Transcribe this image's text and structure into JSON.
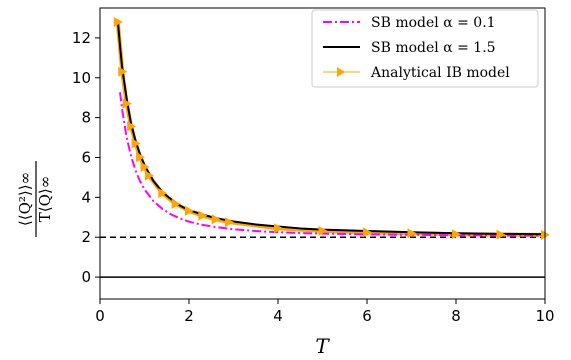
{
  "chart_data": {
    "type": "line",
    "xlabel": "T",
    "ylabel_numerator": "⟨⟨Q²⟩⟩∞",
    "ylabel_denominator": "T⟨Q⟩∞",
    "xlim": [
      0,
      10
    ],
    "ylim": [
      -1.1,
      13.5
    ],
    "x_ticks": [
      0,
      2,
      4,
      6,
      8,
      10
    ],
    "y_ticks": [
      0,
      2,
      4,
      6,
      8,
      10,
      12
    ],
    "grid": false,
    "legend_position": "top-right",
    "reference_lines": [
      {
        "y": 2,
        "style": "dashed",
        "color": "#000000"
      },
      {
        "y": 0,
        "style": "solid",
        "color": "#000000"
      }
    ],
    "series": [
      {
        "name": "SB model α = 0.1",
        "color": "#ff00ff",
        "line_style": "dashdot",
        "x": [
          0.45,
          0.5,
          0.6,
          0.7,
          0.8,
          0.9,
          1.0,
          1.2,
          1.4,
          1.6,
          1.8,
          2.0,
          2.3,
          2.6,
          3.0,
          3.5,
          4.0,
          4.5,
          5.0,
          6.0,
          7.0,
          8.0,
          9.0,
          10.0
        ],
        "y": [
          9.27,
          8.37,
          7.0,
          6.05,
          5.35,
          4.81,
          4.4,
          3.81,
          3.42,
          3.14,
          2.94,
          2.78,
          2.62,
          2.51,
          2.4,
          2.31,
          2.25,
          2.21,
          2.18,
          2.14,
          2.12,
          2.1,
          2.09,
          2.08
        ]
      },
      {
        "name": "SB model α = 1.5",
        "color": "#000000",
        "line_style": "solid",
        "x": [
          0.4,
          0.45,
          0.5,
          0.6,
          0.7,
          0.8,
          0.9,
          1.0,
          1.2,
          1.4,
          1.6,
          1.8,
          2.0,
          2.3,
          2.6,
          3.0,
          3.5,
          4.0,
          4.5,
          5.0,
          6.0,
          7.0,
          8.0,
          9.0,
          10.0
        ],
        "y": [
          12.85,
          11.59,
          10.47,
          8.93,
          7.67,
          6.82,
          6.16,
          5.62,
          4.82,
          4.27,
          3.9,
          3.58,
          3.36,
          3.14,
          2.96,
          2.79,
          2.64,
          2.54,
          2.44,
          2.38,
          2.31,
          2.25,
          2.2,
          2.17,
          2.15
        ]
      },
      {
        "name": "Analytical IB model",
        "color": "#ffa500",
        "line_style": "solid",
        "marker": "triangle-right",
        "x": [
          0.4,
          0.5,
          0.6,
          0.7,
          0.8,
          0.9,
          1.0,
          1.1,
          1.4,
          1.7,
          2.0,
          2.3,
          2.6,
          2.9,
          4.0,
          5.0,
          6.0,
          7.0,
          8.0,
          9.0,
          10.0
        ],
        "y": [
          12.8,
          10.3,
          8.7,
          7.56,
          6.7,
          6.02,
          5.52,
          5.09,
          4.21,
          3.67,
          3.32,
          3.08,
          2.9,
          2.76,
          2.45,
          2.32,
          2.25,
          2.2,
          2.15,
          2.13,
          2.12
        ]
      }
    ]
  }
}
